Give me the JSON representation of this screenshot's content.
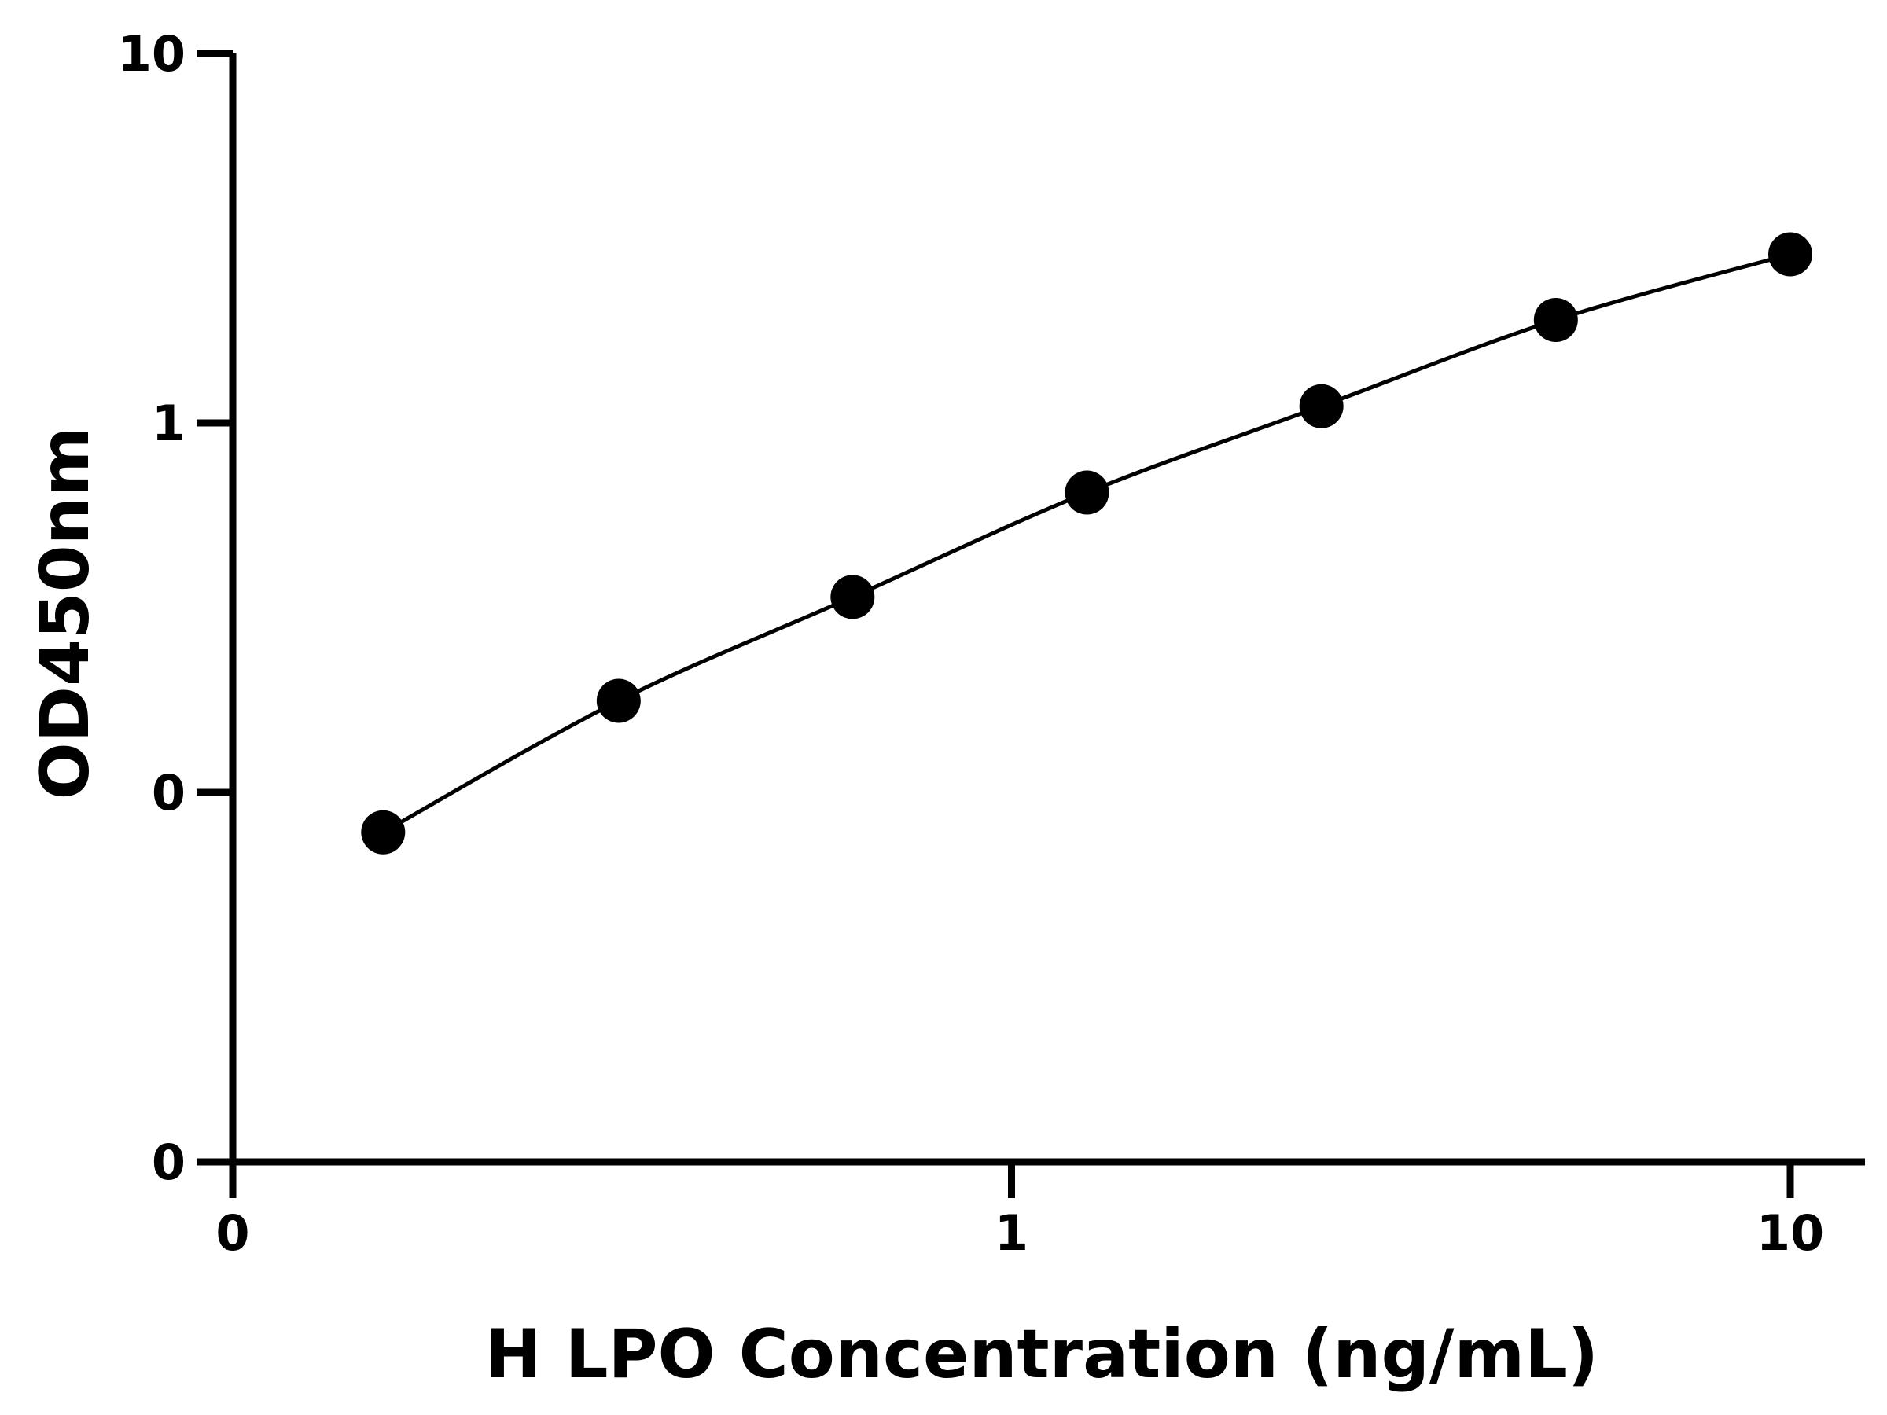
{
  "chart_data": {
    "type": "scatter",
    "title": "",
    "xlabel": "H LPO Concentration (ng/mL)",
    "ylabel": "OD450nm",
    "x_scale": "log",
    "y_scale": "log",
    "xlim": [
      0.1,
      10
    ],
    "ylim": [
      0.01,
      10
    ],
    "x_ticks": [
      {
        "value": 0.1,
        "label": "0"
      },
      {
        "value": 1,
        "label": "1"
      },
      {
        "value": 10,
        "label": "10"
      }
    ],
    "y_ticks": [
      {
        "value": 0.01,
        "label": "0"
      },
      {
        "value": 0.1,
        "label": "0"
      },
      {
        "value": 1,
        "label": "1"
      },
      {
        "value": 10,
        "label": "10"
      }
    ],
    "grid": false,
    "legend": "none",
    "series": [
      {
        "x": [
          0.156,
          0.313,
          0.625,
          1.25,
          2.5,
          5,
          10
        ],
        "y": [
          0.078,
          0.177,
          0.338,
          0.648,
          1.11,
          1.9,
          2.86
        ]
      }
    ],
    "colors": {
      "marker": "#000000",
      "line": "#000000",
      "axis": "#000000"
    }
  }
}
